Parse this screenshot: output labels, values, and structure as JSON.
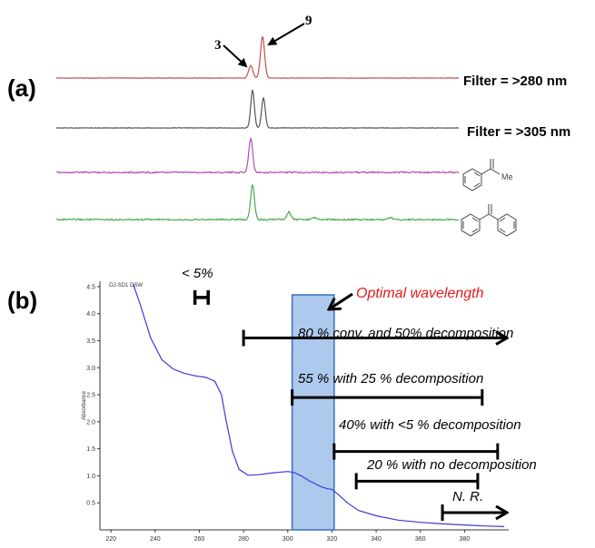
{
  "panel_a": {
    "label": "(a)",
    "peak_labels": [
      "3",
      "9"
    ],
    "filter_labels": [
      "Filter = >280 nm",
      "Filter = >305 nm"
    ],
    "trace_colors": [
      "#c0504d",
      "#555555",
      "#b04cb5",
      "#4aa84a"
    ],
    "structure_icons": [
      "acetophenone-structure-icon",
      "benzophenone-structure-icon"
    ],
    "structure_labels": [
      "Me"
    ]
  },
  "panel_b": {
    "label": "(b)",
    "spectrum_label": "OJ-SD1 DSW",
    "less_than_label": "< 5%",
    "optimal_label": "Optimal wavelength",
    "annotations": [
      "80 % conv. and 50% decomposition",
      "55 % with 25 % decomposition",
      "40% with <5 % decomposition",
      "20 % with no decomposition",
      "N. R."
    ]
  },
  "chart_data": [
    {
      "type": "line",
      "title": "",
      "x_ticks": [],
      "series": [
        {
          "name": "Filter = >280 nm",
          "color": "#c0504d",
          "peaks": [
            {
              "x": 0.0,
              "height": 0.3
            },
            {
              "x": 1.0,
              "height": 1.0
            }
          ]
        },
        {
          "name": "Filter = >305 nm",
          "color": "#555555",
          "peaks": [
            {
              "x": 0.0,
              "height": 1.0
            },
            {
              "x": 1.0,
              "height": 0.8
            }
          ]
        },
        {
          "name": "",
          "color": "#b04cb5",
          "peaks": [
            {
              "x": 0.0,
              "height": 1.0
            }
          ]
        },
        {
          "name": "",
          "color": "#4aa84a",
          "peaks": [
            {
              "x": 0.0,
              "height": 1.0
            },
            {
              "x": 5.0,
              "height": 0.22
            },
            {
              "x": 8.5,
              "height": 0.06
            },
            {
              "x": 19.0,
              "height": 0.06
            }
          ]
        }
      ]
    },
    {
      "type": "line",
      "title": "",
      "xlabel": "",
      "ylabel": "Absorbance",
      "xlim": [
        215,
        400
      ],
      "ylim": [
        0,
        4.6
      ],
      "x_ticks": [
        220,
        240,
        260,
        280,
        300,
        320,
        340,
        360,
        380
      ],
      "y_ticks": [
        0.5,
        1.0,
        1.5,
        2.0,
        2.5,
        3.0,
        3.5,
        4.0,
        4.5
      ],
      "x_tick_labels": [
        "220",
        "240",
        "260",
        "280",
        "300",
        "320",
        "340",
        "360",
        "380"
      ],
      "y_tick_labels": [
        "0.5",
        "1.0",
        "1.5",
        "2.0",
        "2.5",
        "3.0",
        "3.5",
        "4.0",
        "4.5"
      ],
      "series": [
        {
          "name": "",
          "color": "#3b3bd6",
          "x": [
            230,
            233,
            238,
            243,
            248,
            253,
            258,
            263,
            267,
            270,
            272,
            275,
            278,
            282,
            287,
            292,
            297,
            300,
            303,
            306,
            310,
            315,
            318,
            320,
            323,
            327,
            332,
            340,
            350,
            360,
            370,
            380,
            390,
            398
          ],
          "y": [
            4.55,
            4.2,
            3.55,
            3.15,
            2.98,
            2.9,
            2.85,
            2.82,
            2.75,
            2.5,
            2.05,
            1.45,
            1.12,
            1.01,
            1.02,
            1.05,
            1.07,
            1.08,
            1.06,
            1.0,
            0.9,
            0.8,
            0.76,
            0.75,
            0.65,
            0.5,
            0.36,
            0.26,
            0.18,
            0.14,
            0.11,
            0.09,
            0.07,
            0.06
          ]
        }
      ],
      "highlight_band": {
        "from": 302,
        "to": 321,
        "color": "#6a9fe0"
      },
      "ranges": [
        {
          "from": 280,
          "to": 400,
          "arrow": true,
          "y": 3.55
        },
        {
          "from": 302,
          "to": 388,
          "arrow": false,
          "y": 2.45
        },
        {
          "from": 321,
          "to": 395,
          "arrow": false,
          "y": 1.45
        },
        {
          "from": 331,
          "to": 386,
          "arrow": false,
          "y": 0.9
        },
        {
          "from": 370,
          "to": 400,
          "arrow": true,
          "y": 0.32
        }
      ],
      "narrow_range": {
        "from": 258,
        "to": 264,
        "y": 4.3
      }
    }
  ]
}
